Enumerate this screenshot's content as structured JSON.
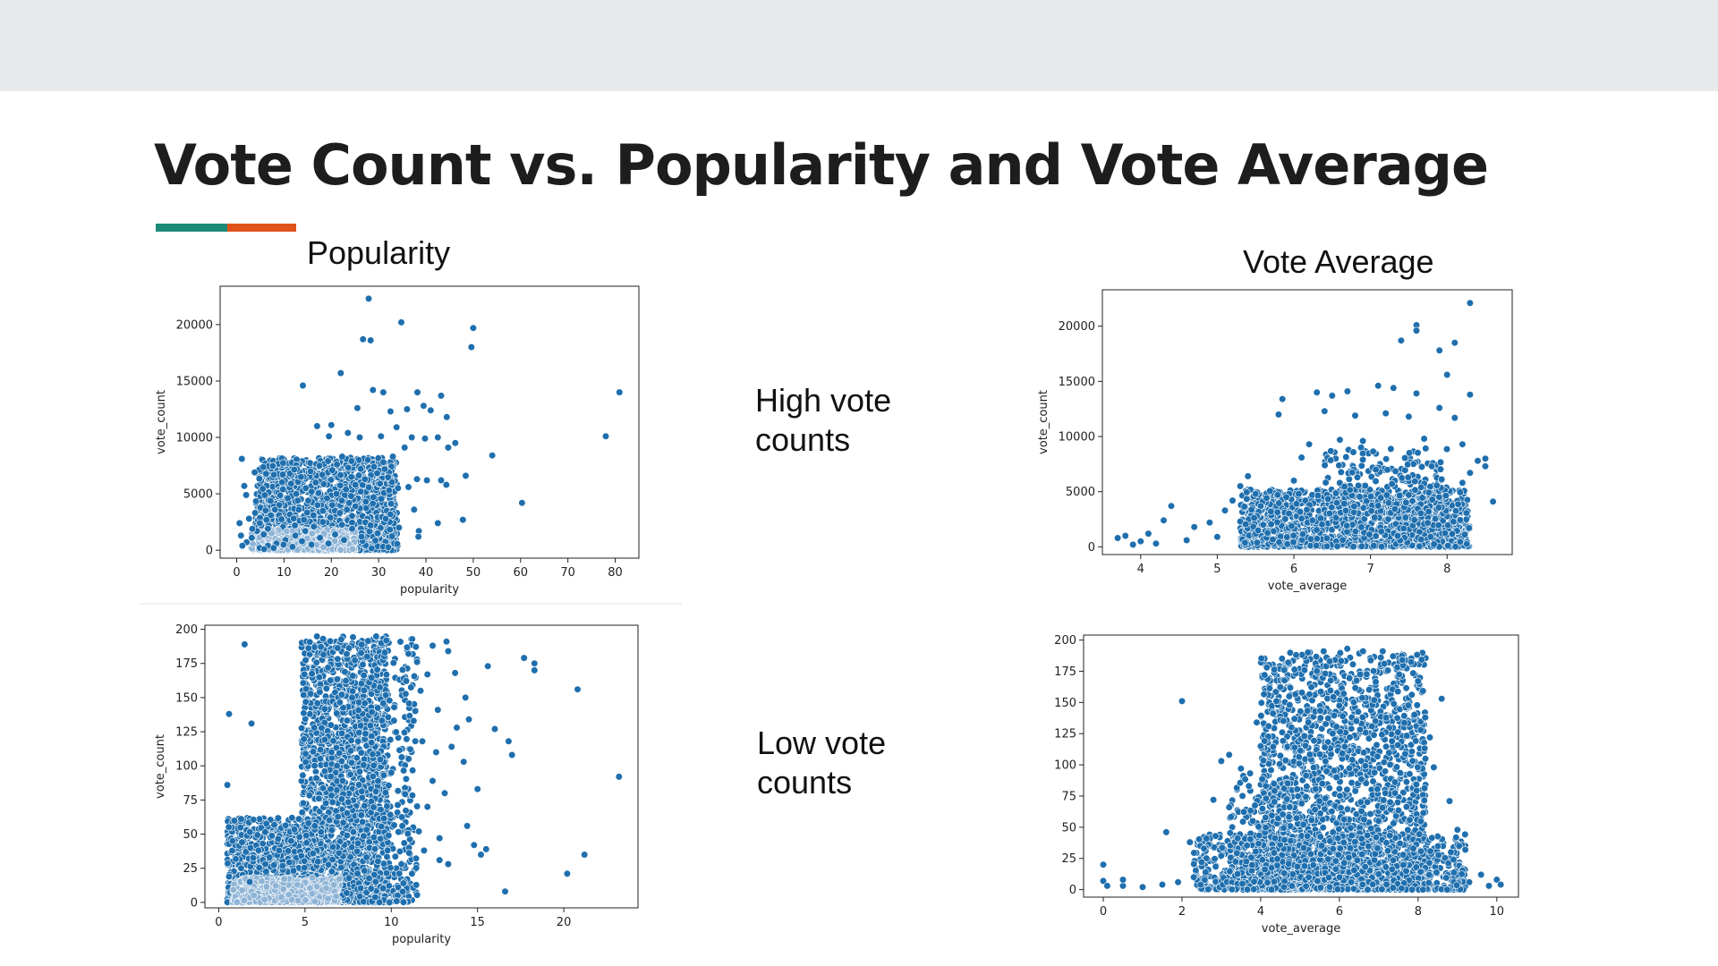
{
  "slide": {
    "title": "Vote Count vs. Popularity and Vote Average",
    "accent_colors": [
      "#1e8a7a",
      "#e0531b"
    ],
    "label_popularity": "Popularity",
    "label_vote_average": "Vote Average",
    "note_high": [
      "High vote",
      "counts"
    ],
    "note_low": [
      "Low vote",
      "counts"
    ]
  },
  "chart_data": [
    {
      "type": "scatter",
      "name": "high-popularity",
      "title": "",
      "xlabel": "popularity",
      "ylabel": "vote_count",
      "xlim": [
        -3.5,
        85
      ],
      "ylim": [
        -700,
        23400
      ],
      "xticks": [
        0,
        10,
        20,
        30,
        40,
        50,
        60,
        70,
        80
      ],
      "yticks": [
        0,
        5000,
        10000,
        15000,
        20000
      ],
      "color": "#1f6fae",
      "points": [
        [
          27.9,
          22300
        ],
        [
          34.8,
          20200
        ],
        [
          50,
          19700
        ],
        [
          49.6,
          18000
        ],
        [
          26.7,
          18700
        ],
        [
          28.3,
          18600
        ],
        [
          80.9,
          14000
        ],
        [
          78,
          10100
        ],
        [
          60.3,
          4200
        ],
        [
          54,
          8400
        ],
        [
          48.4,
          6600
        ],
        [
          47.8,
          2700
        ],
        [
          14,
          14600
        ],
        [
          22,
          15700
        ],
        [
          28.8,
          14200
        ],
        [
          31,
          14000
        ],
        [
          38.2,
          14000
        ],
        [
          43.2,
          13700
        ],
        [
          44.4,
          11800
        ],
        [
          39.5,
          12800
        ],
        [
          41,
          12400
        ],
        [
          36,
          12500
        ],
        [
          32.5,
          12300
        ],
        [
          25.5,
          12600
        ],
        [
          20,
          11100
        ],
        [
          17,
          11000
        ],
        [
          19.5,
          10100
        ],
        [
          23.5,
          10400
        ],
        [
          26,
          10000
        ],
        [
          30.5,
          10100
        ],
        [
          33.8,
          10900
        ],
        [
          37,
          10000
        ],
        [
          39.8,
          9900
        ],
        [
          42.5,
          10000
        ],
        [
          44.7,
          9100
        ],
        [
          46.2,
          9500
        ],
        [
          35.5,
          9100
        ],
        [
          33,
          8300
        ],
        [
          31,
          7800
        ],
        [
          29,
          7400
        ],
        [
          27.7,
          8000
        ],
        [
          26.2,
          7200
        ],
        [
          24.3,
          7900
        ],
        [
          22.3,
          8300
        ],
        [
          21.2,
          7600
        ],
        [
          20.2,
          7100
        ],
        [
          19.3,
          7900
        ],
        [
          18.1,
          6700
        ],
        [
          17.5,
          7500
        ],
        [
          16.7,
          6000
        ],
        [
          15.6,
          7000
        ],
        [
          14.6,
          5500
        ],
        [
          13.6,
          6500
        ],
        [
          12.6,
          5000
        ],
        [
          11.5,
          5900
        ],
        [
          10.8,
          4600
        ],
        [
          9.8,
          5400
        ],
        [
          9,
          4000
        ],
        [
          8.1,
          3600
        ],
        [
          7.2,
          3100
        ],
        [
          6.3,
          2700
        ],
        [
          5.2,
          2200
        ],
        [
          4.3,
          1700
        ],
        [
          3.2,
          1100
        ],
        [
          2.1,
          700
        ],
        [
          1.2,
          400
        ],
        [
          0.6,
          2400
        ],
        [
          1.1,
          8100
        ],
        [
          1.6,
          5700
        ],
        [
          3.8,
          6900
        ],
        [
          3.9,
          3300
        ],
        [
          2,
          4900
        ],
        [
          0.9,
          1300
        ],
        [
          2.6,
          2800
        ],
        [
          3.3,
          1900
        ],
        [
          4.9,
          2400
        ],
        [
          5.7,
          1400
        ],
        [
          6.6,
          1900
        ],
        [
          38.1,
          6300
        ],
        [
          40.2,
          6200
        ],
        [
          43.2,
          6200
        ],
        [
          44.3,
          5800
        ],
        [
          36.3,
          5600
        ],
        [
          34.1,
          5500
        ],
        [
          32.2,
          5300
        ],
        [
          30.3,
          5900
        ],
        [
          28.9,
          4700
        ],
        [
          27.3,
          4300
        ],
        [
          25.1,
          3900
        ],
        [
          23.3,
          3600
        ],
        [
          21.8,
          3300
        ],
        [
          19.8,
          2900
        ],
        [
          18.2,
          2500
        ],
        [
          16.3,
          2100
        ],
        [
          14.5,
          1700
        ],
        [
          12.4,
          1300
        ],
        [
          10.3,
          900
        ],
        [
          8.4,
          600
        ],
        [
          6.6,
          400
        ],
        [
          4.9,
          200
        ],
        [
          37.5,
          3600
        ],
        [
          38.5,
          1700
        ],
        [
          38.4,
          1200
        ],
        [
          42.5,
          2400
        ],
        [
          34.3,
          2000
        ],
        [
          31.5,
          2800
        ],
        [
          29.8,
          1500
        ],
        [
          28.3,
          2200
        ],
        [
          26.4,
          1200
        ],
        [
          24.4,
          1900
        ],
        [
          22.7,
          900
        ],
        [
          20.8,
          1400
        ],
        [
          19.4,
          600
        ],
        [
          17.6,
          1100
        ],
        [
          15.8,
          500
        ],
        [
          13.8,
          800
        ],
        [
          11.8,
          300
        ],
        [
          9.9,
          500
        ],
        [
          7.8,
          200
        ],
        [
          5.8,
          100
        ],
        [
          13.1,
          3600
        ],
        [
          15.1,
          4400
        ],
        [
          17.1,
          4000
        ],
        [
          19.1,
          4600
        ],
        [
          21.1,
          5000
        ],
        [
          23.1,
          5400
        ],
        [
          25.1,
          5800
        ],
        [
          27.1,
          6300
        ],
        [
          12.3,
          2200
        ],
        [
          14.2,
          2700
        ],
        [
          16.2,
          3100
        ],
        [
          18.2,
          3500
        ],
        [
          20.2,
          4000
        ],
        [
          22.2,
          4400
        ],
        [
          24.2,
          4800
        ],
        [
          26.2,
          5200
        ]
      ],
      "cloud": {
        "x": [
          4,
          34
        ],
        "y": [
          0,
          8200
        ],
        "density": 1700
      },
      "cloud_light": {
        "x": [
          3,
          25
        ],
        "y": [
          0,
          1800
        ],
        "density": 420
      }
    },
    {
      "type": "scatter",
      "name": "high-vote-average",
      "title": "",
      "xlabel": "vote_average",
      "ylabel": "vote_count",
      "xlim": [
        3.5,
        8.85
      ],
      "ylim": [
        -700,
        23300
      ],
      "xticks": [
        4,
        5,
        6,
        7,
        8
      ],
      "yticks": [
        0,
        5000,
        10000,
        15000,
        20000
      ],
      "color": "#1f6fae",
      "points": [
        [
          8.3,
          22100
        ],
        [
          7.6,
          20100
        ],
        [
          7.6,
          19600
        ],
        [
          7.4,
          18700
        ],
        [
          7.9,
          17800
        ],
        [
          8.1,
          18500
        ],
        [
          8.0,
          15600
        ],
        [
          5.85,
          13400
        ],
        [
          5.8,
          12000
        ],
        [
          8.3,
          13800
        ],
        [
          8.5,
          8000
        ],
        [
          8.4,
          7800
        ],
        [
          8.6,
          4100
        ],
        [
          8.5,
          7300
        ],
        [
          3.7,
          800
        ],
        [
          3.8,
          1000
        ],
        [
          4.1,
          1200
        ],
        [
          4.3,
          2400
        ],
        [
          4.4,
          3700
        ],
        [
          4.7,
          1800
        ],
        [
          4.9,
          2200
        ],
        [
          5.1,
          3300
        ],
        [
          5.2,
          4200
        ],
        [
          5.3,
          5500
        ],
        [
          5.4,
          6400
        ],
        [
          5.5,
          4800
        ],
        [
          6.3,
          14000
        ],
        [
          6.5,
          13700
        ],
        [
          6.7,
          14100
        ],
        [
          7.1,
          14600
        ],
        [
          7.3,
          14400
        ],
        [
          7.6,
          13900
        ],
        [
          7.9,
          12600
        ],
        [
          6.4,
          12300
        ],
        [
          6.8,
          11900
        ],
        [
          7.2,
          12100
        ],
        [
          7.5,
          11800
        ],
        [
          8.1,
          11700
        ],
        [
          6.6,
          9700
        ],
        [
          6.9,
          9600
        ],
        [
          7.7,
          9800
        ],
        [
          8.2,
          9300
        ],
        [
          6.2,
          9300
        ],
        [
          6.1,
          8100
        ],
        [
          6.9,
          7900
        ],
        [
          7.8,
          7300
        ],
        [
          8.3,
          6700
        ],
        [
          8.2,
          5800
        ],
        [
          7.5,
          4700
        ],
        [
          6.0,
          6000
        ],
        [
          5.9,
          4500
        ],
        [
          5.7,
          3200
        ],
        [
          5.6,
          2000
        ],
        [
          5.0,
          900
        ],
        [
          4.6,
          600
        ],
        [
          4.2,
          300
        ],
        [
          3.9,
          200
        ],
        [
          4.0,
          500
        ]
      ],
      "cloud": {
        "x": [
          5.3,
          8.3
        ],
        "y": [
          0,
          5200
        ],
        "density": 1400
      },
      "cloud2": {
        "x": [
          6.4,
          8.0
        ],
        "y": [
          3000,
          9000
        ],
        "density": 260
      }
    },
    {
      "type": "scatter",
      "name": "low-popularity",
      "title": "",
      "xlabel": "popularity",
      "ylabel": "vote_count",
      "xlim": [
        -0.8,
        24.3
      ],
      "ylim": [
        -4,
        203
      ],
      "xticks": [
        0,
        5,
        10,
        15,
        20
      ],
      "yticks": [
        0,
        25,
        50,
        75,
        100,
        125,
        150,
        175,
        200
      ],
      "color": "#1f6fae",
      "points": [
        [
          23.2,
          92
        ],
        [
          21.2,
          35
        ],
        [
          20.2,
          21
        ],
        [
          20.8,
          156
        ],
        [
          18.3,
          175
        ],
        [
          18.3,
          170
        ],
        [
          17.7,
          179
        ],
        [
          17,
          108
        ],
        [
          16.8,
          118
        ],
        [
          16.6,
          8
        ],
        [
          16,
          127
        ],
        [
          15.5,
          39
        ],
        [
          15.2,
          35
        ],
        [
          14.8,
          42
        ],
        [
          15,
          83
        ],
        [
          14.5,
          134
        ],
        [
          14.3,
          150
        ],
        [
          13.2,
          191
        ],
        [
          13.3,
          184
        ],
        [
          12.4,
          188
        ],
        [
          13.7,
          168
        ],
        [
          12.7,
          141
        ],
        [
          12.1,
          167
        ],
        [
          11.7,
          155
        ],
        [
          11.3,
          133
        ],
        [
          12.6,
          110
        ],
        [
          13.5,
          114
        ],
        [
          14.2,
          103
        ],
        [
          13.1,
          80
        ],
        [
          14.4,
          56
        ],
        [
          12.4,
          89
        ],
        [
          13.3,
          28
        ],
        [
          11.9,
          38
        ],
        [
          12.8,
          31
        ],
        [
          11.2,
          21
        ],
        [
          10.7,
          14
        ],
        [
          9.9,
          0
        ],
        [
          0.6,
          138
        ],
        [
          1.5,
          189
        ],
        [
          1.9,
          131
        ],
        [
          0.5,
          86
        ],
        [
          0.8,
          45
        ],
        [
          1.3,
          25
        ],
        [
          1.8,
          15
        ],
        [
          2.7,
          28
        ],
        [
          3.5,
          38
        ],
        [
          4.2,
          45
        ],
        [
          5.2,
          58
        ],
        [
          13.8,
          128
        ],
        [
          15.6,
          173
        ],
        [
          11.6,
          52
        ],
        [
          11.8,
          118
        ],
        [
          12.1,
          70
        ],
        [
          12.8,
          47
        ]
      ],
      "cloud": {
        "x": [
          4.8,
          9.8
        ],
        "y": [
          0,
          195
        ],
        "density": 1900
      },
      "cloud2": {
        "x": [
          0.5,
          6
        ],
        "y": [
          0,
          62
        ],
        "density": 1100
      },
      "cloud3": {
        "x": [
          8,
          11.5
        ],
        "y": [
          0,
          195
        ],
        "density": 420
      },
      "cloud_light": {
        "x": [
          0.8,
          7
        ],
        "y": [
          0,
          18
        ],
        "density": 520
      }
    },
    {
      "type": "scatter",
      "name": "low-vote-average",
      "title": "",
      "xlabel": "vote_average",
      "ylabel": "vote_count",
      "xlim": [
        -0.5,
        10.55
      ],
      "ylim": [
        -6,
        204
      ],
      "xticks": [
        0,
        2,
        4,
        6,
        8,
        10
      ],
      "yticks": [
        0,
        25,
        50,
        75,
        100,
        125,
        150,
        175,
        200
      ],
      "color": "#1f6fae",
      "points": [
        [
          0,
          20
        ],
        [
          0,
          7
        ],
        [
          0.1,
          3
        ],
        [
          0.5,
          3
        ],
        [
          0.5,
          8
        ],
        [
          1,
          2
        ],
        [
          1.5,
          4
        ],
        [
          1.9,
          6
        ],
        [
          2,
          151
        ],
        [
          1.6,
          46
        ],
        [
          2.2,
          38
        ],
        [
          2.5,
          22
        ],
        [
          2.8,
          72
        ],
        [
          3,
          103
        ],
        [
          3.2,
          108
        ],
        [
          3.5,
          97
        ],
        [
          3.7,
          83
        ],
        [
          3.2,
          66
        ],
        [
          3.9,
          134
        ],
        [
          4.1,
          172
        ],
        [
          4.6,
          176
        ],
        [
          4.7,
          182
        ],
        [
          4.9,
          188
        ],
        [
          5.2,
          190
        ],
        [
          5.6,
          191
        ],
        [
          6.2,
          193
        ],
        [
          6.6,
          191
        ],
        [
          7.1,
          191
        ],
        [
          7.6,
          184
        ],
        [
          8,
          167
        ],
        [
          8.6,
          153
        ],
        [
          8.8,
          71
        ],
        [
          9,
          48
        ],
        [
          9.2,
          32
        ],
        [
          9.6,
          12
        ],
        [
          10,
          8
        ],
        [
          9.8,
          3
        ],
        [
          10.1,
          4
        ],
        [
          9.3,
          6
        ],
        [
          8.9,
          24
        ],
        [
          8.4,
          98
        ],
        [
          8.3,
          122
        ],
        [
          4.4,
          151
        ],
        [
          4.2,
          131
        ],
        [
          4,
          115
        ],
        [
          3.8,
          55
        ],
        [
          2.6,
          14
        ],
        [
          2.3,
          10
        ]
      ],
      "cloud": {
        "x": [
          4,
          8.2
        ],
        "y": [
          0,
          190
        ],
        "density": 2100
      },
      "cloud2": {
        "x": [
          2.3,
          9.2
        ],
        "y": [
          0,
          45
        ],
        "density": 900
      },
      "cloud3": {
        "x": [
          3.2,
          4.8
        ],
        "y": [
          0,
          95
        ],
        "density": 200
      }
    }
  ]
}
